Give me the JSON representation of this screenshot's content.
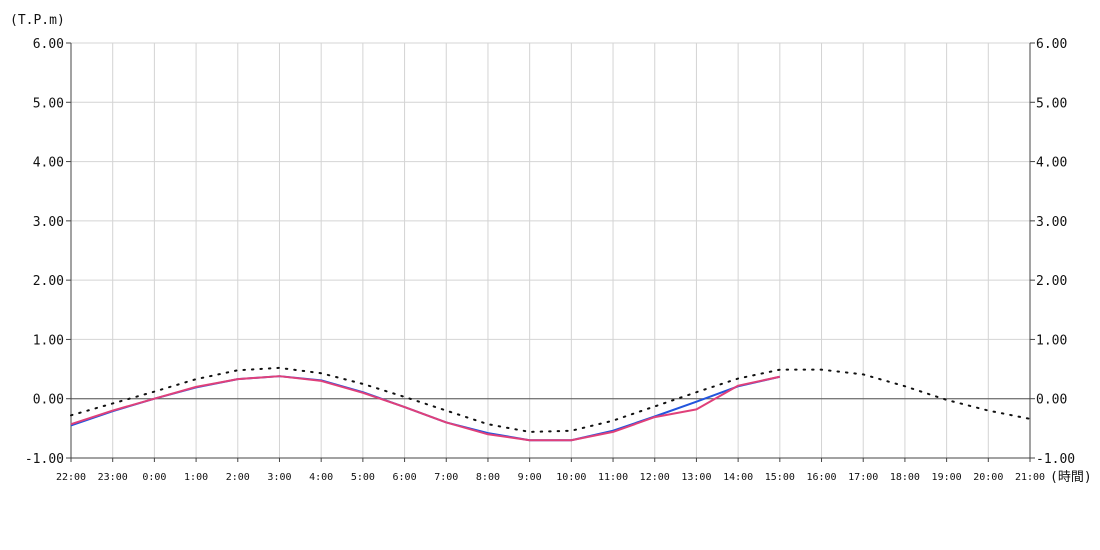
{
  "chart_data": {
    "type": "line",
    "y_unit_label": "(T.P.m)",
    "x_unit_label": "(時間)",
    "ylim": [
      -1.0,
      6.0
    ],
    "y_ticks": [
      "6.00",
      "5.00",
      "4.00",
      "3.00",
      "2.00",
      "1.00",
      "0.00",
      "-1.00"
    ],
    "y_tick_values": [
      6,
      5,
      4,
      3,
      2,
      1,
      0,
      -1
    ],
    "categories": [
      "22:00",
      "23:00",
      "0:00",
      "1:00",
      "2:00",
      "3:00",
      "4:00",
      "5:00",
      "6:00",
      "7:00",
      "8:00",
      "9:00",
      "10:00",
      "11:00",
      "12:00",
      "13:00",
      "14:00",
      "15:00",
      "16:00",
      "17:00",
      "18:00",
      "19:00",
      "20:00",
      "21:00"
    ],
    "grid": true,
    "series": [
      {
        "key": "predicted",
        "style": "dotted",
        "color": "#111111",
        "values": [
          -0.28,
          -0.08,
          0.12,
          0.33,
          0.48,
          0.52,
          0.43,
          0.25,
          0.03,
          -0.2,
          -0.43,
          -0.56,
          -0.54,
          -0.37,
          -0.13,
          0.11,
          0.34,
          0.49,
          0.49,
          0.41,
          0.21,
          -0.02,
          -0.2,
          -0.34
        ]
      },
      {
        "key": "observed-blue",
        "style": "solid",
        "color": "#2255dd",
        "values": [
          -0.45,
          -0.21,
          0.0,
          0.19,
          0.33,
          0.38,
          0.31,
          0.11,
          -0.14,
          -0.4,
          -0.58,
          -0.7,
          -0.7,
          -0.54,
          -0.3,
          -0.05,
          0.21,
          0.37,
          null,
          null,
          null,
          null,
          null,
          null
        ]
      },
      {
        "key": "observed-pink",
        "style": "solid",
        "color": "#e0407a",
        "values": [
          -0.43,
          -0.2,
          0.0,
          0.2,
          0.33,
          0.38,
          0.3,
          0.1,
          -0.14,
          -0.4,
          -0.6,
          -0.7,
          -0.7,
          -0.56,
          -0.31,
          -0.18,
          0.22,
          0.37,
          null,
          null,
          null,
          null,
          null,
          null
        ]
      }
    ]
  }
}
